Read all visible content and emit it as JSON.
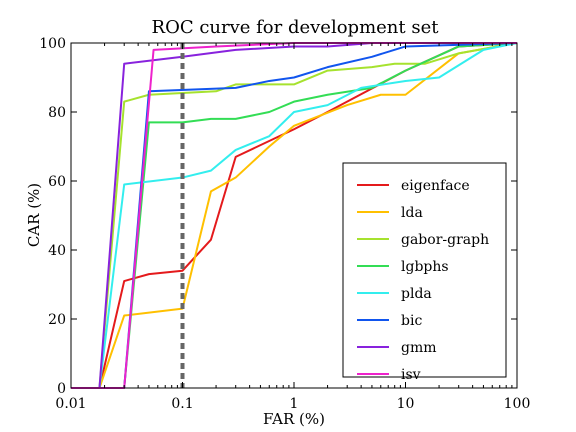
{
  "chart_data": {
    "type": "line",
    "title": "ROC curve for development set",
    "xlabel": "FAR (%)",
    "ylabel": "CAR (%)",
    "x_scale": "log",
    "xlim": [
      0.01,
      100
    ],
    "ylim": [
      0,
      100
    ],
    "x_ticks": [
      0.01,
      0.1,
      1,
      10,
      100
    ],
    "x_tick_labels": [
      "0.01",
      "0.1",
      "1",
      "10",
      "100"
    ],
    "y_ticks": [
      0,
      20,
      40,
      60,
      80,
      100
    ],
    "y_tick_labels": [
      "0",
      "20",
      "40",
      "60",
      "80",
      "100"
    ],
    "grid": false,
    "legend_position": "lower-right",
    "reference_line": {
      "x": 0.1,
      "style": "dashed",
      "color": "#666666"
    },
    "series": [
      {
        "name": "eigenface",
        "color": "#e41a1c",
        "points": [
          [
            0.01,
            0
          ],
          [
            0.018,
            0
          ],
          [
            0.03,
            31
          ],
          [
            0.05,
            33
          ],
          [
            0.1,
            34
          ],
          [
            0.18,
            43
          ],
          [
            0.3,
            67
          ],
          [
            1,
            75
          ],
          [
            2,
            80
          ],
          [
            10,
            92
          ],
          [
            30,
            99
          ],
          [
            100,
            100
          ]
        ]
      },
      {
        "name": "lda",
        "color": "#ffc000",
        "points": [
          [
            0.01,
            0
          ],
          [
            0.018,
            0
          ],
          [
            0.03,
            21
          ],
          [
            0.1,
            23
          ],
          [
            0.18,
            57
          ],
          [
            0.3,
            61
          ],
          [
            0.6,
            70
          ],
          [
            1,
            76
          ],
          [
            3,
            82
          ],
          [
            6,
            85
          ],
          [
            10,
            85
          ],
          [
            30,
            97
          ],
          [
            100,
            100
          ]
        ]
      },
      {
        "name": "gabor-graph",
        "color": "#a6e22e",
        "points": [
          [
            0.01,
            0
          ],
          [
            0.018,
            0
          ],
          [
            0.03,
            83
          ],
          [
            0.05,
            85
          ],
          [
            0.2,
            86
          ],
          [
            0.3,
            88
          ],
          [
            1,
            88
          ],
          [
            2,
            92
          ],
          [
            5,
            93
          ],
          [
            8,
            94
          ],
          [
            15,
            94
          ],
          [
            30,
            97
          ],
          [
            100,
            100
          ]
        ]
      },
      {
        "name": "lgbphs",
        "color": "#33dd55",
        "points": [
          [
            0.01,
            0
          ],
          [
            0.018,
            0
          ],
          [
            0.03,
            0
          ],
          [
            0.05,
            77
          ],
          [
            0.1,
            77
          ],
          [
            0.18,
            78
          ],
          [
            0.3,
            78
          ],
          [
            0.6,
            80
          ],
          [
            1,
            83
          ],
          [
            2,
            85
          ],
          [
            5,
            87
          ],
          [
            10,
            92
          ],
          [
            30,
            99
          ],
          [
            100,
            100
          ]
        ]
      },
      {
        "name": "plda",
        "color": "#33eeee",
        "points": [
          [
            0.01,
            0
          ],
          [
            0.018,
            0
          ],
          [
            0.03,
            59
          ],
          [
            0.1,
            61
          ],
          [
            0.18,
            63
          ],
          [
            0.3,
            69
          ],
          [
            0.6,
            73
          ],
          [
            1,
            80
          ],
          [
            2,
            82
          ],
          [
            4,
            87
          ],
          [
            10,
            89
          ],
          [
            20,
            90
          ],
          [
            50,
            98
          ],
          [
            100,
            100
          ]
        ]
      },
      {
        "name": "bic",
        "color": "#1155ee",
        "points": [
          [
            0.01,
            0
          ],
          [
            0.018,
            0
          ],
          [
            0.03,
            0
          ],
          [
            0.05,
            86
          ],
          [
            0.3,
            87
          ],
          [
            0.6,
            89
          ],
          [
            1,
            90
          ],
          [
            2,
            93
          ],
          [
            5,
            96
          ],
          [
            10,
            99
          ],
          [
            100,
            100
          ]
        ]
      },
      {
        "name": "gmm",
        "color": "#8822dd",
        "points": [
          [
            0.01,
            0
          ],
          [
            0.018,
            0
          ],
          [
            0.03,
            94
          ],
          [
            0.1,
            96
          ],
          [
            0.3,
            98
          ],
          [
            1,
            99
          ],
          [
            2,
            99
          ],
          [
            5,
            100
          ],
          [
            100,
            100
          ]
        ]
      },
      {
        "name": "isv",
        "color": "#ee22cc",
        "points": [
          [
            0.01,
            0
          ],
          [
            0.018,
            0
          ],
          [
            0.03,
            0
          ],
          [
            0.055,
            98
          ],
          [
            0.2,
            99
          ],
          [
            1,
            100
          ],
          [
            100,
            100
          ]
        ]
      }
    ]
  }
}
